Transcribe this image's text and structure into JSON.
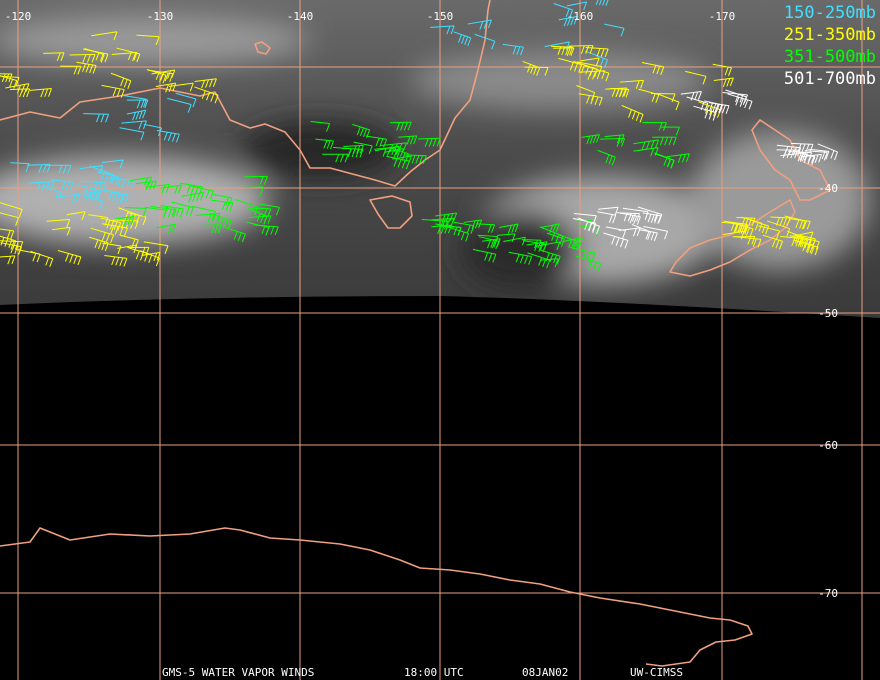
{
  "map": {
    "longitude_labels": [
      "-120",
      "-130",
      "-140",
      "-150",
      "-160",
      "-170"
    ],
    "latitude_labels": [
      "-40",
      "-50",
      "-60",
      "-70"
    ],
    "legend": [
      "150-250mb",
      "251-350mb",
      "351-500mb",
      "501-700mb"
    ],
    "footer": [
      "GMS-5 WATER VAPOR WINDS",
      "18:00 UTC",
      "08JAN02",
      "UW-CIMSS"
    ]
  }
}
